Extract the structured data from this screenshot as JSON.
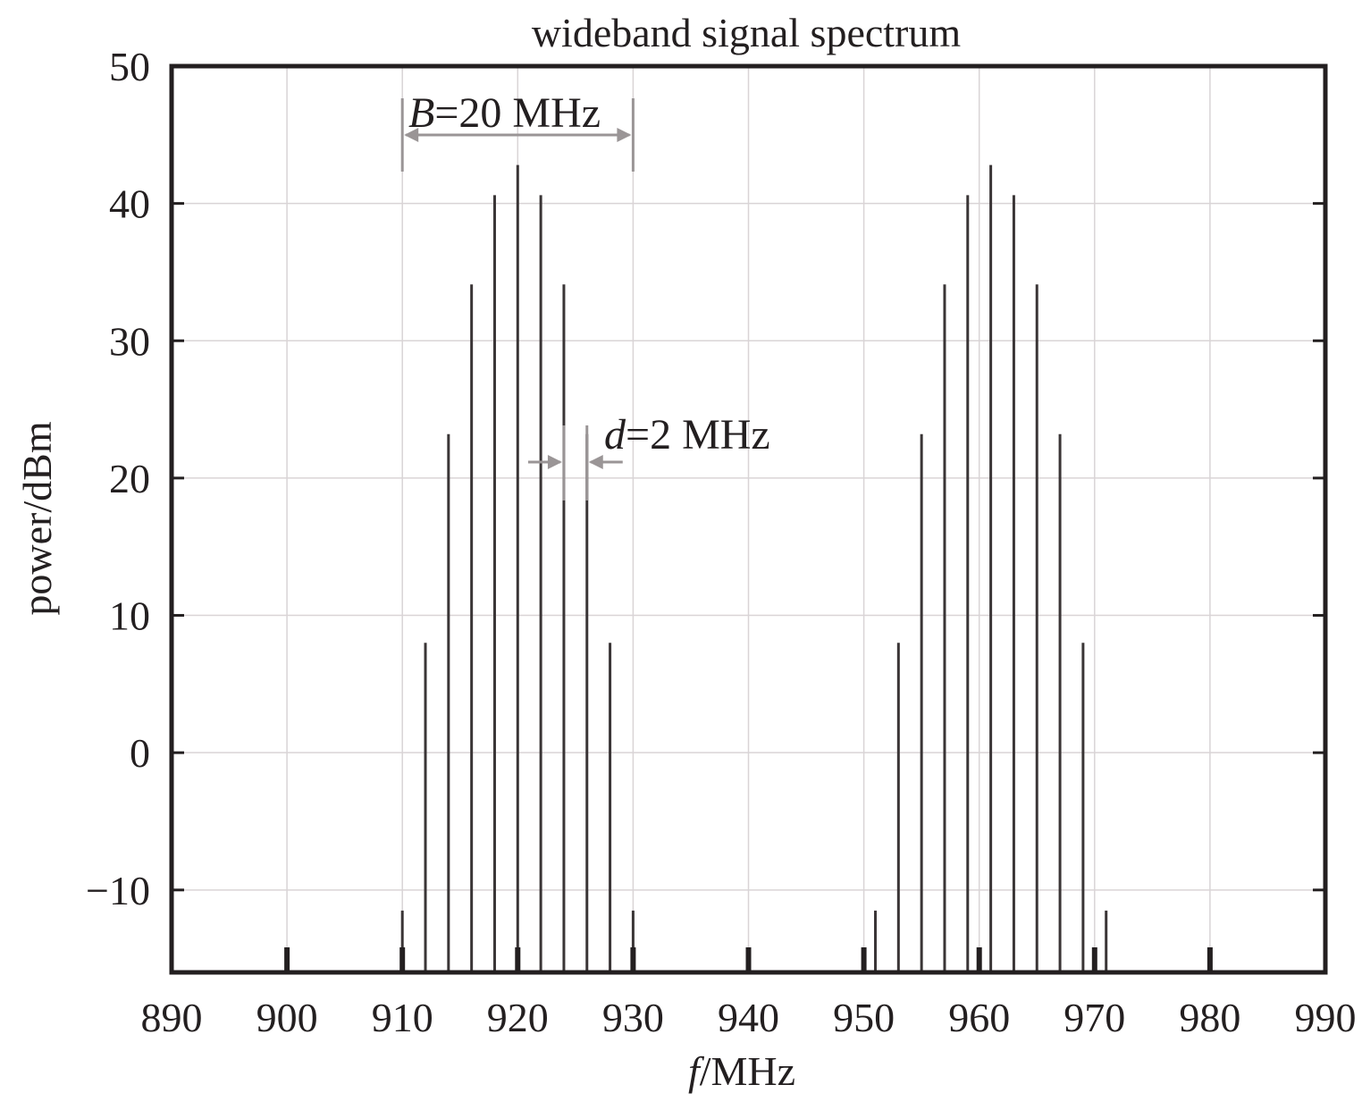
{
  "chart_data": {
    "type": "bar",
    "title": "wideband signal spectrum",
    "xlabel": "f/MHz",
    "xlabel_italic_part": "f",
    "xlabel_rest": "/MHz",
    "ylabel": "power/dBm",
    "xlim": [
      890,
      990
    ],
    "ylim": [
      -16,
      50
    ],
    "xticks": [
      890,
      900,
      910,
      920,
      930,
      940,
      950,
      960,
      970,
      980,
      990
    ],
    "yticks": [
      -10,
      0,
      10,
      20,
      30,
      40,
      50
    ],
    "ytick_labels": [
      "−10",
      "0",
      "10",
      "20",
      "30",
      "40",
      "50"
    ],
    "grid": true,
    "series": [
      {
        "x": [
          910,
          912,
          914,
          916,
          918,
          920,
          922,
          924,
          926,
          928,
          930
        ],
        "values": [
          -11.5,
          8,
          23.2,
          34.1,
          40.6,
          42.8,
          40.6,
          34.1,
          23.2,
          8,
          -11.5
        ]
      },
      {
        "x": [
          951,
          953,
          955,
          957,
          959,
          961,
          963,
          965,
          967,
          969,
          971
        ],
        "values": [
          -11.5,
          8,
          23.2,
          34.1,
          40.6,
          42.8,
          40.6,
          34.1,
          23.2,
          8,
          -11.5
        ]
      }
    ],
    "annotations": [
      {
        "id": "bandwidth",
        "var": "B",
        "rest": "=20 MHz",
        "x_from": 910,
        "x_to": 930,
        "style": "double-arrow"
      },
      {
        "id": "spacing",
        "var": "d",
        "rest": "=2 MHz",
        "x_from": 924,
        "x_to": 926,
        "style": "inward-arrows"
      }
    ],
    "colors": {
      "stem": "#3a3536",
      "axis": "#231f20",
      "grid": "#d9d4d6",
      "annotation": "#9a9596"
    }
  }
}
